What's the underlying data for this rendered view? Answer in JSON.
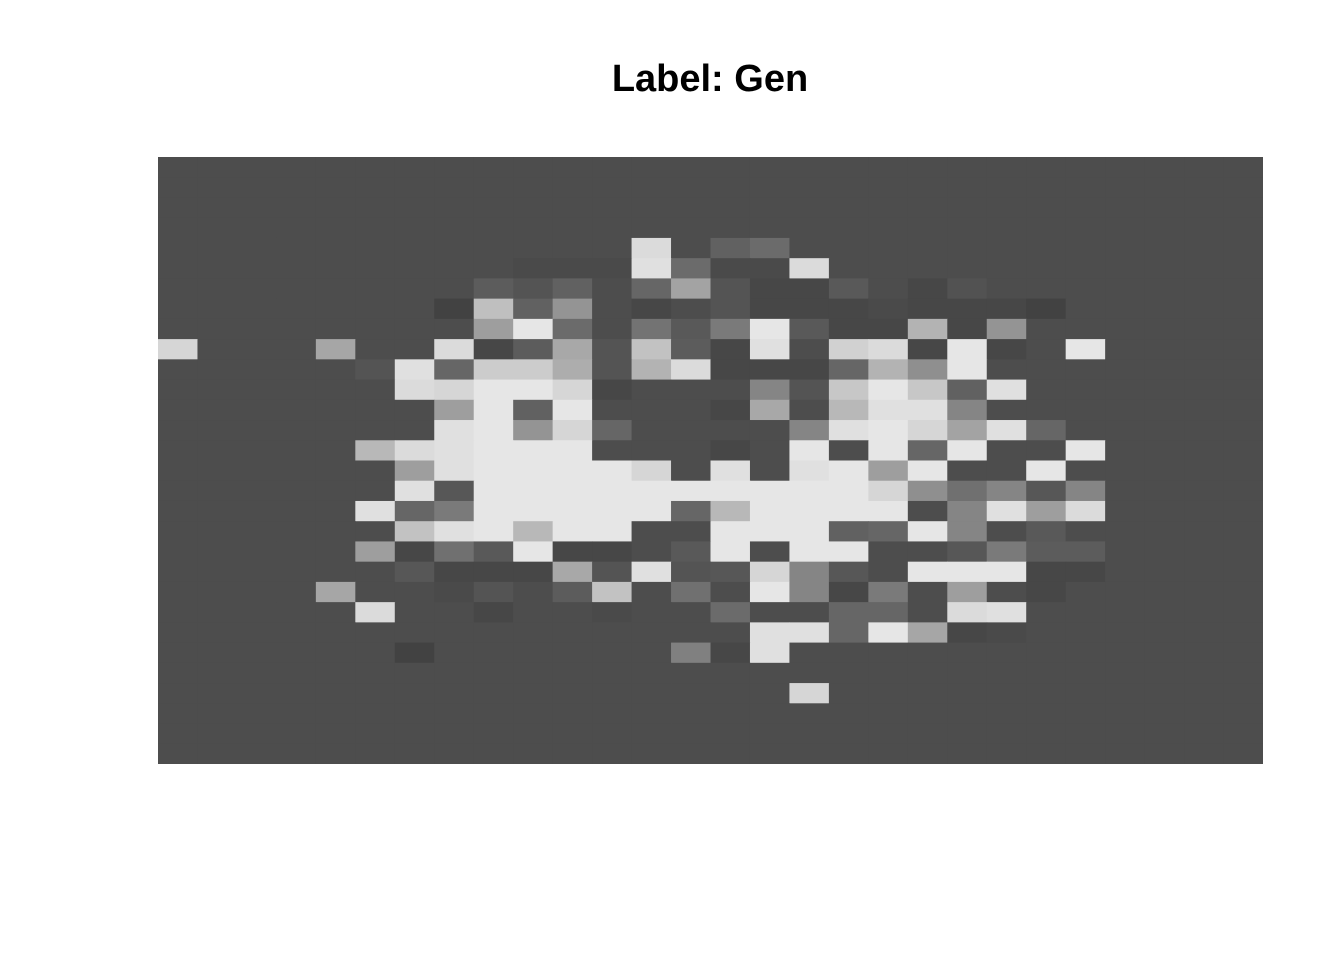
{
  "title": "Label: Gen",
  "image": {
    "rows": 30,
    "cols": 28,
    "background_value": 0.3,
    "colors": {
      "background": "#4e4e4e"
    },
    "pixels": [
      [
        0.3,
        0.3,
        0.3,
        0.3,
        0.3,
        0.3,
        0.3,
        0.3,
        0.3,
        0.3,
        0.3,
        0.3,
        0.3,
        0.3,
        0.3,
        0.3,
        0.3,
        0.3,
        0.3,
        0.3,
        0.3,
        0.3,
        0.3,
        0.3,
        0.3,
        0.3,
        0.3,
        0.3
      ],
      [
        0.3,
        0.3,
        0.3,
        0.3,
        0.3,
        0.3,
        0.3,
        0.3,
        0.3,
        0.3,
        0.3,
        0.3,
        0.3,
        0.3,
        0.3,
        0.3,
        0.3,
        0.3,
        0.3,
        0.3,
        0.3,
        0.3,
        0.3,
        0.3,
        0.3,
        0.3,
        0.3,
        0.3
      ],
      [
        0.3,
        0.3,
        0.3,
        0.3,
        0.3,
        0.3,
        0.3,
        0.3,
        0.3,
        0.3,
        0.3,
        0.3,
        0.3,
        0.3,
        0.3,
        0.3,
        0.3,
        0.3,
        0.3,
        0.3,
        0.3,
        0.3,
        0.3,
        0.3,
        0.3,
        0.3,
        0.3,
        0.3
      ],
      [
        0.3,
        0.3,
        0.3,
        0.3,
        0.3,
        0.3,
        0.3,
        0.3,
        0.3,
        0.3,
        0.3,
        0.3,
        0.3,
        0.3,
        0.3,
        0.3,
        0.3,
        0.3,
        0.3,
        0.3,
        0.3,
        0.3,
        0.3,
        0.3,
        0.3,
        0.3,
        0.3,
        0.3
      ],
      [
        0.3,
        0.3,
        0.3,
        0.3,
        0.3,
        0.3,
        0.3,
        0.3,
        0.3,
        0.3,
        0.3,
        0.3,
        0.86,
        0.3,
        0.38,
        0.42,
        0.3,
        0.3,
        0.3,
        0.3,
        0.3,
        0.3,
        0.3,
        0.3,
        0.3,
        0.3,
        0.3,
        0.3
      ],
      [
        0.3,
        0.3,
        0.3,
        0.3,
        0.3,
        0.3,
        0.3,
        0.3,
        0.3,
        0.29,
        0.29,
        0.29,
        0.88,
        0.42,
        0.29,
        0.29,
        0.86,
        0.3,
        0.3,
        0.3,
        0.3,
        0.3,
        0.3,
        0.3,
        0.3,
        0.3,
        0.3,
        0.3
      ],
      [
        0.3,
        0.3,
        0.3,
        0.3,
        0.3,
        0.3,
        0.3,
        0.3,
        0.36,
        0.33,
        0.38,
        0.3,
        0.4,
        0.64,
        0.33,
        0.28,
        0.28,
        0.35,
        0.3,
        0.28,
        0.32,
        0.3,
        0.3,
        0.3,
        0.3,
        0.3,
        0.3,
        0.3
      ],
      [
        0.3,
        0.3,
        0.3,
        0.3,
        0.3,
        0.3,
        0.3,
        0.26,
        0.75,
        0.38,
        0.58,
        0.3,
        0.28,
        0.3,
        0.33,
        0.28,
        0.28,
        0.28,
        0.29,
        0.28,
        0.28,
        0.28,
        0.26,
        0.3,
        0.3,
        0.3,
        0.3,
        0.3
      ],
      [
        0.3,
        0.3,
        0.3,
        0.3,
        0.3,
        0.3,
        0.3,
        0.3,
        0.62,
        0.9,
        0.42,
        0.3,
        0.45,
        0.35,
        0.48,
        0.9,
        0.35,
        0.28,
        0.28,
        0.7,
        0.28,
        0.58,
        0.3,
        0.3,
        0.3,
        0.3,
        0.3,
        0.3
      ],
      [
        0.84,
        0.3,
        0.3,
        0.3,
        0.65,
        0.3,
        0.3,
        0.86,
        0.28,
        0.36,
        0.66,
        0.33,
        0.76,
        0.36,
        0.28,
        0.88,
        0.3,
        0.82,
        0.86,
        0.28,
        0.9,
        0.28,
        0.3,
        0.9,
        0.3,
        0.3,
        0.3,
        0.3
      ],
      [
        0.3,
        0.3,
        0.3,
        0.3,
        0.3,
        0.33,
        0.88,
        0.4,
        0.8,
        0.8,
        0.68,
        0.33,
        0.7,
        0.86,
        0.28,
        0.28,
        0.28,
        0.4,
        0.7,
        0.56,
        0.9,
        0.3,
        0.3,
        0.3,
        0.3,
        0.3,
        0.3,
        0.3
      ],
      [
        0.3,
        0.3,
        0.3,
        0.3,
        0.3,
        0.3,
        0.86,
        0.84,
        0.9,
        0.9,
        0.84,
        0.28,
        0.3,
        0.3,
        0.3,
        0.52,
        0.33,
        0.78,
        0.9,
        0.78,
        0.38,
        0.88,
        0.3,
        0.3,
        0.3,
        0.3,
        0.3,
        0.3
      ],
      [
        0.3,
        0.3,
        0.3,
        0.3,
        0.3,
        0.3,
        0.3,
        0.62,
        0.9,
        0.38,
        0.9,
        0.3,
        0.3,
        0.3,
        0.28,
        0.66,
        0.3,
        0.72,
        0.88,
        0.88,
        0.52,
        0.3,
        0.3,
        0.3,
        0.3,
        0.3,
        0.3,
        0.3
      ],
      [
        0.3,
        0.3,
        0.3,
        0.3,
        0.3,
        0.3,
        0.3,
        0.88,
        0.9,
        0.58,
        0.84,
        0.4,
        0.3,
        0.3,
        0.3,
        0.3,
        0.52,
        0.88,
        0.9,
        0.84,
        0.64,
        0.88,
        0.4,
        0.3,
        0.3,
        0.3,
        0.3,
        0.3
      ],
      [
        0.3,
        0.3,
        0.3,
        0.3,
        0.3,
        0.72,
        0.86,
        0.88,
        0.9,
        0.9,
        0.9,
        0.3,
        0.3,
        0.3,
        0.28,
        0.3,
        0.9,
        0.3,
        0.9,
        0.4,
        0.9,
        0.3,
        0.3,
        0.9,
        0.3,
        0.3,
        0.3,
        0.3
      ],
      [
        0.3,
        0.3,
        0.3,
        0.3,
        0.3,
        0.3,
        0.62,
        0.88,
        0.9,
        0.9,
        0.9,
        0.9,
        0.84,
        0.3,
        0.88,
        0.3,
        0.88,
        0.9,
        0.62,
        0.9,
        0.3,
        0.3,
        0.9,
        0.3,
        0.3,
        0.3,
        0.3,
        0.3
      ],
      [
        0.3,
        0.3,
        0.3,
        0.3,
        0.3,
        0.3,
        0.88,
        0.34,
        0.9,
        0.9,
        0.9,
        0.9,
        0.9,
        0.9,
        0.9,
        0.9,
        0.9,
        0.9,
        0.84,
        0.56,
        0.44,
        0.52,
        0.34,
        0.52,
        0.3,
        0.3,
        0.3,
        0.3
      ],
      [
        0.3,
        0.3,
        0.3,
        0.3,
        0.3,
        0.88,
        0.4,
        0.48,
        0.9,
        0.9,
        0.9,
        0.9,
        0.9,
        0.4,
        0.72,
        0.9,
        0.9,
        0.9,
        0.9,
        0.3,
        0.52,
        0.88,
        0.62,
        0.86,
        0.3,
        0.3,
        0.3,
        0.3
      ],
      [
        0.3,
        0.3,
        0.3,
        0.3,
        0.3,
        0.3,
        0.76,
        0.88,
        0.9,
        0.72,
        0.9,
        0.9,
        0.3,
        0.3,
        0.9,
        0.9,
        0.9,
        0.38,
        0.4,
        0.9,
        0.52,
        0.3,
        0.35,
        0.3,
        0.3,
        0.3,
        0.3,
        0.3
      ],
      [
        0.3,
        0.3,
        0.3,
        0.3,
        0.3,
        0.62,
        0.28,
        0.44,
        0.35,
        0.9,
        0.28,
        0.28,
        0.3,
        0.35,
        0.9,
        0.3,
        0.9,
        0.9,
        0.3,
        0.3,
        0.34,
        0.48,
        0.36,
        0.36,
        0.3,
        0.3,
        0.3,
        0.3
      ],
      [
        0.3,
        0.3,
        0.3,
        0.3,
        0.3,
        0.3,
        0.34,
        0.28,
        0.28,
        0.28,
        0.66,
        0.33,
        0.88,
        0.33,
        0.34,
        0.84,
        0.52,
        0.34,
        0.3,
        0.9,
        0.9,
        0.9,
        0.28,
        0.28,
        0.3,
        0.3,
        0.3,
        0.3
      ],
      [
        0.3,
        0.3,
        0.3,
        0.3,
        0.65,
        0.3,
        0.3,
        0.29,
        0.33,
        0.3,
        0.36,
        0.76,
        0.3,
        0.44,
        0.3,
        0.9,
        0.52,
        0.28,
        0.48,
        0.3,
        0.62,
        0.3,
        0.28,
        0.3,
        0.3,
        0.3,
        0.3,
        0.3
      ],
      [
        0.3,
        0.3,
        0.3,
        0.3,
        0.3,
        0.86,
        0.3,
        0.3,
        0.28,
        0.3,
        0.3,
        0.29,
        0.3,
        0.3,
        0.42,
        0.3,
        0.3,
        0.4,
        0.4,
        0.3,
        0.86,
        0.88,
        0.3,
        0.3,
        0.3,
        0.3,
        0.3,
        0.3
      ],
      [
        0.3,
        0.3,
        0.3,
        0.3,
        0.3,
        0.3,
        0.3,
        0.3,
        0.3,
        0.3,
        0.3,
        0.3,
        0.3,
        0.3,
        0.3,
        0.88,
        0.88,
        0.4,
        0.9,
        0.65,
        0.28,
        0.29,
        0.3,
        0.3,
        0.3,
        0.3,
        0.3,
        0.3
      ],
      [
        0.3,
        0.3,
        0.3,
        0.3,
        0.3,
        0.3,
        0.26,
        0.3,
        0.3,
        0.3,
        0.3,
        0.3,
        0.3,
        0.5,
        0.28,
        0.88,
        0.3,
        0.3,
        0.3,
        0.3,
        0.3,
        0.3,
        0.3,
        0.3,
        0.3,
        0.3,
        0.3,
        0.3
      ],
      [
        0.3,
        0.3,
        0.3,
        0.3,
        0.3,
        0.3,
        0.3,
        0.3,
        0.3,
        0.3,
        0.3,
        0.3,
        0.3,
        0.3,
        0.3,
        0.3,
        0.3,
        0.3,
        0.3,
        0.3,
        0.3,
        0.3,
        0.3,
        0.3,
        0.3,
        0.3,
        0.3,
        0.3
      ],
      [
        0.3,
        0.3,
        0.3,
        0.3,
        0.3,
        0.3,
        0.3,
        0.3,
        0.3,
        0.3,
        0.3,
        0.3,
        0.3,
        0.3,
        0.3,
        0.3,
        0.84,
        0.3,
        0.3,
        0.3,
        0.3,
        0.3,
        0.3,
        0.3,
        0.3,
        0.3,
        0.3,
        0.3
      ],
      [
        0.3,
        0.3,
        0.3,
        0.3,
        0.3,
        0.3,
        0.3,
        0.3,
        0.3,
        0.3,
        0.3,
        0.3,
        0.3,
        0.3,
        0.3,
        0.3,
        0.3,
        0.3,
        0.3,
        0.3,
        0.3,
        0.3,
        0.3,
        0.3,
        0.3,
        0.3,
        0.3,
        0.3
      ],
      [
        0.3,
        0.3,
        0.3,
        0.3,
        0.3,
        0.3,
        0.3,
        0.3,
        0.3,
        0.3,
        0.3,
        0.3,
        0.3,
        0.3,
        0.3,
        0.3,
        0.3,
        0.3,
        0.3,
        0.3,
        0.3,
        0.3,
        0.3,
        0.3,
        0.3,
        0.3,
        0.3,
        0.3
      ],
      [
        0.3,
        0.3,
        0.3,
        0.3,
        0.3,
        0.3,
        0.3,
        0.3,
        0.3,
        0.3,
        0.3,
        0.3,
        0.3,
        0.3,
        0.3,
        0.3,
        0.3,
        0.3,
        0.3,
        0.3,
        0.3,
        0.3,
        0.3,
        0.3,
        0.3,
        0.3,
        0.3,
        0.3
      ]
    ]
  }
}
